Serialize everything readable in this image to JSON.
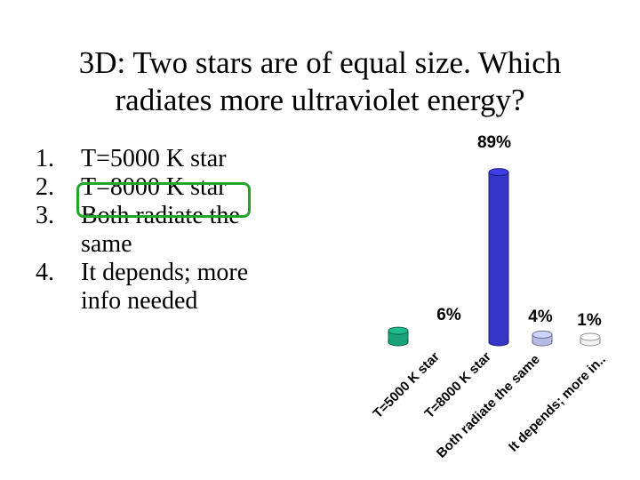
{
  "slide": {
    "title_line1": "3D: Two stars are of equal size. Which",
    "title_line2": "radiates more ultraviolet energy?",
    "options": [
      {
        "number": "1.",
        "text_lines": [
          "T=5000 K star"
        ]
      },
      {
        "number": "2.",
        "text_lines": [
          "T=8000 K star"
        ]
      },
      {
        "number": "3.",
        "text_lines": [
          "Both radiate the",
          "same"
        ]
      },
      {
        "number": "4.",
        "text_lines": [
          "It depends; more",
          "info needed"
        ]
      }
    ],
    "correct_option_index": 1,
    "correct_color": "#22a52b"
  },
  "chart_data": {
    "type": "bar",
    "style": "3d-cylinder",
    "categories": [
      "T=5000 K star",
      "T=8000 K star",
      "Both radiate the same",
      "It depends; more in.."
    ],
    "values": [
      6,
      89,
      4,
      1
    ],
    "value_labels": [
      "6%",
      "89%",
      "4%",
      "1%"
    ],
    "colors": [
      "#1aa37a",
      "#3535c8",
      "#b4b9e6",
      "#f2f2f2"
    ],
    "ylim": [
      0,
      100
    ],
    "grid": false,
    "legend": "none"
  }
}
